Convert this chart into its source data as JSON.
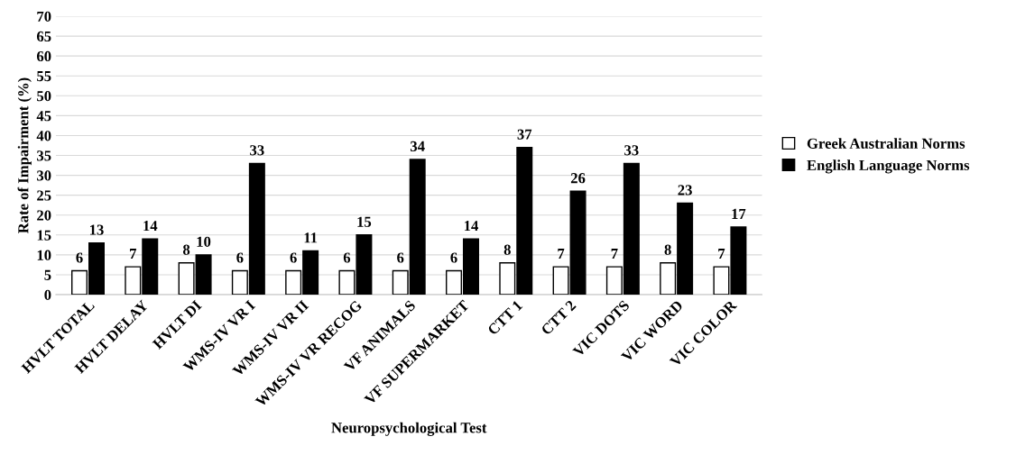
{
  "chart_data": {
    "type": "bar",
    "xlabel": "Neuropsychological Test",
    "ylabel": "Rate of Impairment (%)",
    "categories": [
      "HVLT TOTAL",
      "HVLT DELAY",
      "HVLT DI",
      "WMS-IV VR I",
      "WMS-IV VR II",
      "WMS-IV VR RECOG",
      "VF ANIMALS",
      "VF SUPERMARKET",
      "CTT 1",
      "CTT 2",
      "VIC DOTS",
      "VIC WORD",
      "VIC COLOR"
    ],
    "series": [
      {
        "name": "Greek Australian Norms",
        "color": "#ffffff",
        "values": [
          6,
          7,
          8,
          6,
          6,
          6,
          6,
          6,
          8,
          7,
          7,
          8,
          7
        ]
      },
      {
        "name": "English Language Norms",
        "color": "#000000",
        "values": [
          13,
          14,
          10,
          33,
          11,
          15,
          34,
          14,
          37,
          26,
          33,
          23,
          17
        ]
      }
    ],
    "ylim": [
      0,
      70
    ],
    "yticks": [
      0,
      5,
      10,
      15,
      20,
      25,
      30,
      35,
      40,
      45,
      50,
      55,
      60,
      65,
      70
    ],
    "grid": "y",
    "legend": "right",
    "data_labels": true
  }
}
